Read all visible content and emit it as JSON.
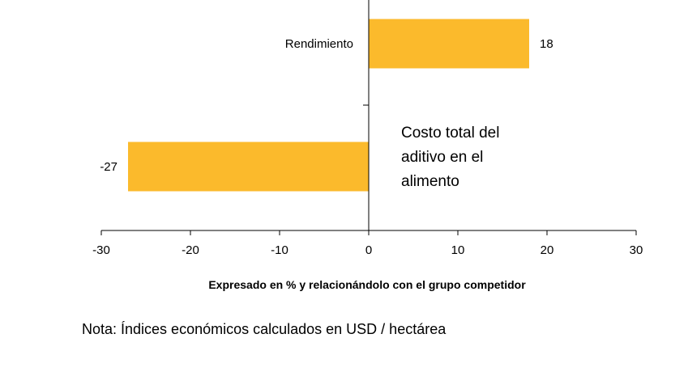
{
  "chart_data": {
    "type": "bar",
    "orientation": "horizontal",
    "categories": [
      "Rendimiento",
      "Costo total del aditivo en el alimento"
    ],
    "values": [
      18,
      -27
    ],
    "xlabel": "Expresado en % y relacionándolo con el grupo competidor",
    "ylabel": "",
    "xlim": [
      -30,
      30
    ],
    "xticks": [
      -30,
      -20,
      -10,
      0,
      10,
      20,
      30
    ],
    "bar_color": "#FBBA2C",
    "grid": false,
    "legend": "none"
  },
  "note": "Nota: Índices económicos calculados en USD / hectárea"
}
